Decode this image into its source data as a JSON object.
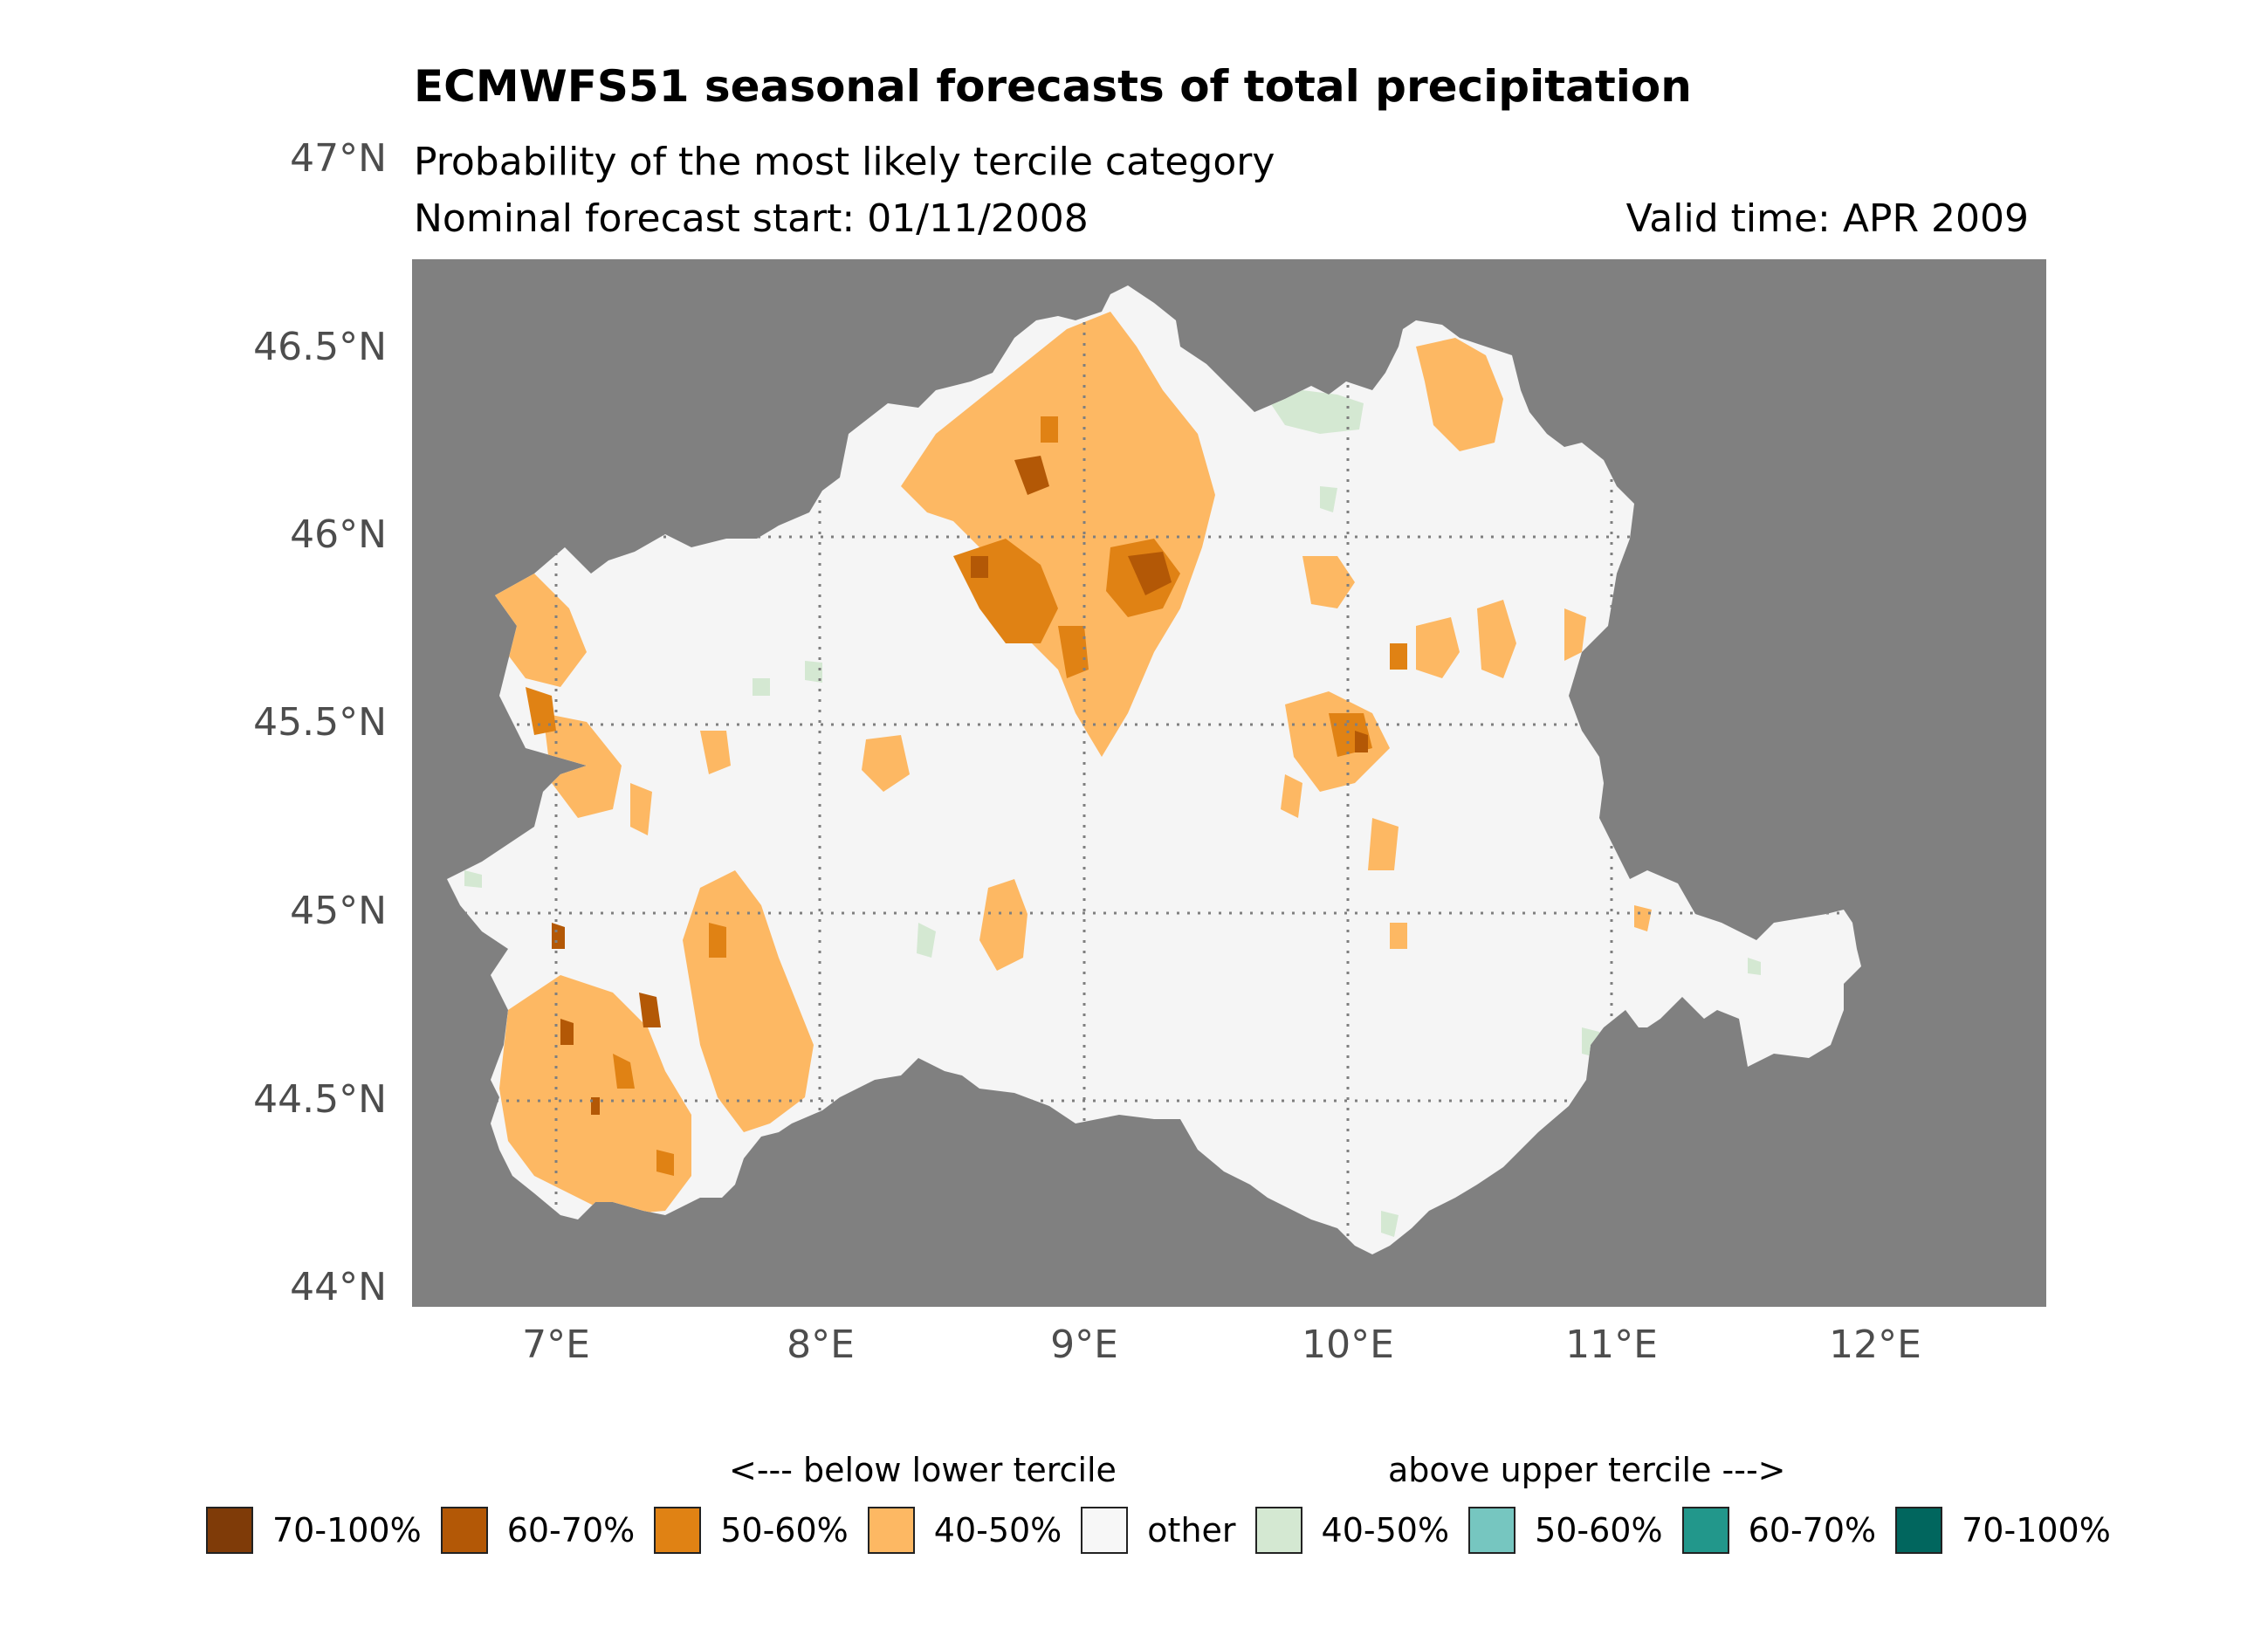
{
  "title": "ECMWFS51 seasonal forecasts of total precipitation",
  "subtitle1": "Probability of the most likely tercile category",
  "subtitle2": "Nominal forecast start: 01/11/2008",
  "valid_time": "Valid time: APR 2009",
  "axes": {
    "y_ticks": [
      "47°N",
      "46.5°N",
      "46°N",
      "45.5°N",
      "45°N",
      "44.5°N",
      "44°N"
    ],
    "x_ticks": [
      "7°E",
      "8°E",
      "9°E",
      "10°E",
      "11°E",
      "12°E"
    ]
  },
  "colors": {
    "background": "#808080",
    "land": "#f5f5f5",
    "grid": "#7f7f7f"
  },
  "legend": {
    "below_label": "<--- below lower tercile",
    "above_label": "above upper tercile --->",
    "items": [
      {
        "label": "70-100%",
        "color": "#7f3b08"
      },
      {
        "label": "60-70%",
        "color": "#b35806"
      },
      {
        "label": "50-60%",
        "color": "#e08214"
      },
      {
        "label": "40-50%",
        "color": "#fdb863"
      },
      {
        "label": "other",
        "color": "#f7f7f7"
      },
      {
        "label": "40-50%",
        "color": "#d4e8d2"
      },
      {
        "label": "50-60%",
        "color": "#76c6c0"
      },
      {
        "label": "60-70%",
        "color": "#22978b"
      },
      {
        "label": "70-100%",
        "color": "#01665e"
      }
    ]
  }
}
